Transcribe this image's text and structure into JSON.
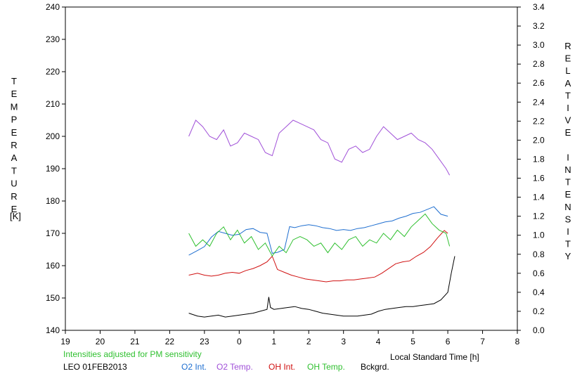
{
  "chart_data": {
    "type": "line",
    "title": "",
    "xlabel": "Local Standard Time [h]",
    "ylabel_left": "TEMPERATURE",
    "ylabel_left_unit": "[K]",
    "ylabel_right": "RELATIVE INTENSITY",
    "x_tick_labels": [
      "19",
      "20",
      "21",
      "22",
      "23",
      "0",
      "1",
      "2",
      "3",
      "4",
      "5",
      "6",
      "7",
      "8"
    ],
    "xlim": [
      19,
      32
    ],
    "ylim_left": [
      140,
      240
    ],
    "ylim_right": [
      0.0,
      3.4
    ],
    "y_left_ticks": [
      140,
      150,
      160,
      170,
      180,
      190,
      200,
      210,
      220,
      230,
      240
    ],
    "y_right_ticks": [
      "0.0",
      "0.2",
      "0.4",
      "0.6",
      "0.8",
      "1.0",
      "1.2",
      "1.4",
      "1.6",
      "1.8",
      "2.0",
      "2.2",
      "2.4",
      "2.6",
      "2.8",
      "3.0",
      "3.2",
      "3.4"
    ],
    "grid": false,
    "note": "Intensities adjusted for PM sensitivity",
    "caption": "LEO 01FEB2013",
    "colors": {
      "o2_int": "#1f6fd0",
      "o2_temp": "#a050d8",
      "oh_int": "#d01010",
      "oh_temp": "#30c030",
      "bckgrd": "#000000",
      "note": "#30c030"
    },
    "series": [
      {
        "name": "O2 Int.",
        "axis": "right",
        "color": "#1f6fd0",
        "x": [
          22.55,
          22.8,
          23.0,
          23.2,
          23.4,
          23.6,
          23.8,
          24.0,
          24.2,
          24.4,
          24.6,
          24.8,
          24.95,
          25.1,
          25.3,
          25.45,
          25.6,
          25.8,
          26.0,
          26.2,
          26.4,
          26.6,
          26.8,
          27.0,
          27.2,
          27.4,
          27.6,
          27.8,
          28.0,
          28.2,
          28.4,
          28.6,
          28.8,
          29.0,
          29.2,
          29.4,
          29.6,
          29.8,
          30.0
        ],
        "y": [
          0.79,
          0.84,
          0.88,
          0.98,
          1.04,
          1.02,
          1.0,
          1.01,
          1.06,
          1.07,
          1.03,
          1.02,
          0.81,
          0.82,
          0.85,
          1.09,
          1.08,
          1.1,
          1.11,
          1.1,
          1.08,
          1.07,
          1.05,
          1.06,
          1.05,
          1.07,
          1.08,
          1.1,
          1.12,
          1.14,
          1.15,
          1.18,
          1.2,
          1.23,
          1.24,
          1.27,
          1.3,
          1.22,
          1.2
        ]
      },
      {
        "name": "O2 Temp.",
        "axis": "left",
        "color": "#a050d8",
        "x": [
          22.55,
          22.75,
          22.95,
          23.15,
          23.35,
          23.55,
          23.75,
          23.95,
          24.15,
          24.35,
          24.55,
          24.75,
          24.95,
          25.15,
          25.35,
          25.55,
          25.75,
          25.95,
          26.15,
          26.35,
          26.55,
          26.75,
          26.95,
          27.15,
          27.35,
          27.55,
          27.75,
          27.95,
          28.15,
          28.35,
          28.55,
          28.75,
          28.95,
          29.15,
          29.35,
          29.55,
          29.75,
          29.95,
          30.05
        ],
        "y": [
          200,
          205,
          203,
          200,
          199,
          202,
          197,
          198,
          201,
          200,
          199,
          195,
          194,
          201,
          203,
          205,
          204,
          203,
          202,
          199,
          198,
          193,
          192,
          196,
          197,
          195,
          196,
          200,
          203,
          201,
          199,
          200,
          201,
          199,
          198,
          196,
          193,
          190,
          188
        ]
      },
      {
        "name": "OH Int.",
        "axis": "right",
        "color": "#d01010",
        "x": [
          22.55,
          22.8,
          23.0,
          23.2,
          23.4,
          23.6,
          23.8,
          24.0,
          24.2,
          24.4,
          24.6,
          24.8,
          24.95,
          25.1,
          25.3,
          25.5,
          25.7,
          25.9,
          26.1,
          26.3,
          26.5,
          26.7,
          26.9,
          27.1,
          27.3,
          27.5,
          27.7,
          27.9,
          28.1,
          28.3,
          28.5,
          28.7,
          28.9,
          29.1,
          29.3,
          29.5,
          29.7,
          29.9,
          30.0
        ],
        "y": [
          0.58,
          0.6,
          0.58,
          0.57,
          0.58,
          0.6,
          0.61,
          0.6,
          0.63,
          0.65,
          0.68,
          0.72,
          0.78,
          0.64,
          0.61,
          0.58,
          0.56,
          0.54,
          0.53,
          0.52,
          0.51,
          0.52,
          0.52,
          0.53,
          0.53,
          0.54,
          0.55,
          0.56,
          0.6,
          0.65,
          0.7,
          0.72,
          0.73,
          0.78,
          0.82,
          0.88,
          0.97,
          1.05,
          1.02
        ]
      },
      {
        "name": "OH Temp.",
        "axis": "left",
        "color": "#30c030",
        "x": [
          22.55,
          22.75,
          22.95,
          23.15,
          23.35,
          23.55,
          23.75,
          23.95,
          24.15,
          24.35,
          24.55,
          24.75,
          24.95,
          25.15,
          25.35,
          25.55,
          25.75,
          25.95,
          26.15,
          26.35,
          26.55,
          26.75,
          26.95,
          27.15,
          27.35,
          27.55,
          27.75,
          27.95,
          28.15,
          28.35,
          28.55,
          28.75,
          28.95,
          29.15,
          29.35,
          29.55,
          29.75,
          29.95,
          30.05
        ],
        "y": [
          170,
          166,
          168,
          166,
          170,
          172,
          168,
          171,
          167,
          169,
          165,
          167,
          163,
          166,
          164,
          168,
          169,
          168,
          166,
          167,
          164,
          167,
          165,
          168,
          169,
          166,
          168,
          167,
          170,
          168,
          171,
          169,
          172,
          174,
          176,
          173,
          171,
          170,
          166
        ]
      },
      {
        "name": "Bckgrd.",
        "axis": "right",
        "color": "#000000",
        "x": [
          22.55,
          22.8,
          23.0,
          23.2,
          23.4,
          23.6,
          23.8,
          24.0,
          24.2,
          24.4,
          24.6,
          24.8,
          24.85,
          24.9,
          25.0,
          25.2,
          25.4,
          25.6,
          25.8,
          26.0,
          26.2,
          26.4,
          26.6,
          26.8,
          27.0,
          27.2,
          27.4,
          27.6,
          27.8,
          28.0,
          28.2,
          28.4,
          28.6,
          28.8,
          29.0,
          29.2,
          29.4,
          29.6,
          29.8,
          30.0,
          30.1,
          30.2
        ],
        "y": [
          0.18,
          0.15,
          0.14,
          0.15,
          0.16,
          0.14,
          0.15,
          0.16,
          0.17,
          0.18,
          0.2,
          0.22,
          0.35,
          0.24,
          0.22,
          0.23,
          0.24,
          0.25,
          0.23,
          0.22,
          0.2,
          0.18,
          0.17,
          0.16,
          0.15,
          0.15,
          0.15,
          0.16,
          0.17,
          0.2,
          0.22,
          0.23,
          0.24,
          0.25,
          0.25,
          0.26,
          0.27,
          0.28,
          0.32,
          0.4,
          0.6,
          0.78
        ]
      }
    ]
  }
}
